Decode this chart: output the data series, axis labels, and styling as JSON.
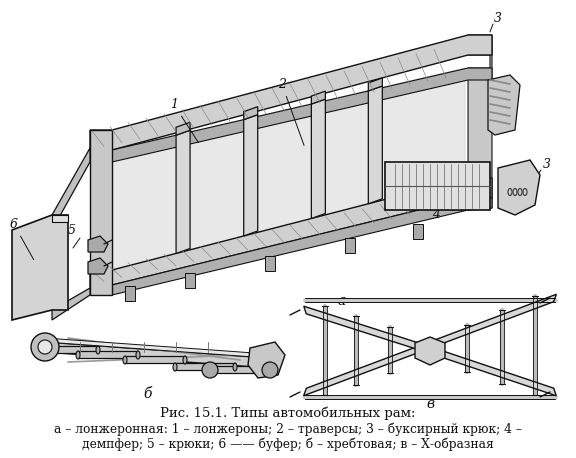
{
  "title": "Рис. 15.1. Типы автомобильных рам:",
  "caption_line1": "а – лонжеронная: 1 – лонжероны; 2 – траверсы; 3 – буксирный крюк; 4 –",
  "caption_line2": "демпфер; 5 – крюки; 6 —— буфер; б – хребтовая; в – Х-образная",
  "bg_color": "#ffffff",
  "title_fontsize": 9.5,
  "caption_fontsize": 8.8,
  "label_fontsize": 9,
  "fig_width": 5.76,
  "fig_height": 4.58,
  "dpi": 100
}
